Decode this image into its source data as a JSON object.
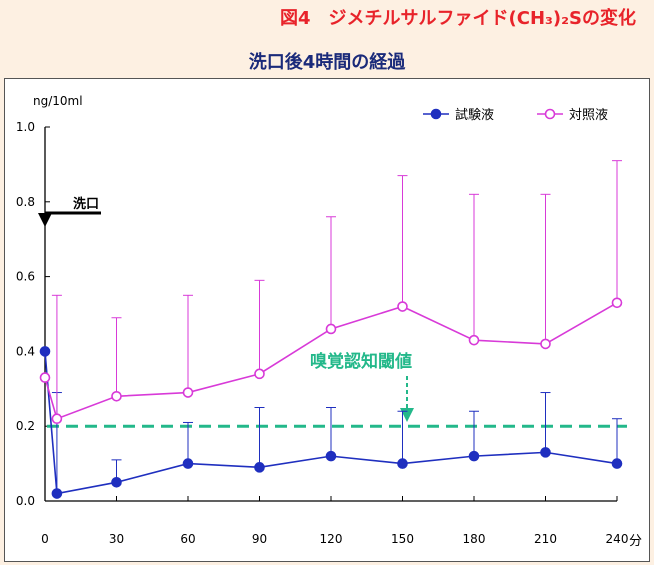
{
  "figure_title": "図4　ジメチルサルファイド(CH₃)₂Sの変化",
  "chart_title": "洗口後4時間の経過",
  "colors": {
    "test": "#1f2fbf",
    "control": "#d83ad8",
    "threshold": "#23b88a",
    "title_red": "#e8232a",
    "title_navy": "#1a2a7a"
  },
  "chart_data": {
    "type": "line",
    "ylabel": "ng/10ml",
    "xunit": "分",
    "ylim": [
      0.0,
      1.0
    ],
    "xlim": [
      0,
      240
    ],
    "yticks": [
      "0.0",
      "0.2",
      "0.4",
      "0.6",
      "0.8",
      "1.0"
    ],
    "xticks": [
      "0",
      "30",
      "60",
      "90",
      "120",
      "150",
      "180",
      "210",
      "240"
    ],
    "series": [
      {
        "name": "試験液",
        "marker": "filled-circle",
        "x": [
          0,
          5,
          30,
          60,
          90,
          120,
          150,
          180,
          210,
          240
        ],
        "y": [
          0.4,
          0.02,
          0.05,
          0.1,
          0.09,
          0.12,
          0.1,
          0.12,
          0.13,
          0.1
        ],
        "error_upper": [
          0.4,
          0.29,
          0.11,
          0.21,
          0.25,
          0.25,
          0.24,
          0.24,
          0.29,
          0.22
        ]
      },
      {
        "name": "対照液",
        "marker": "open-circle",
        "x": [
          0,
          5,
          30,
          60,
          90,
          120,
          150,
          180,
          210,
          240
        ],
        "y": [
          0.33,
          0.22,
          0.28,
          0.29,
          0.34,
          0.46,
          0.52,
          0.43,
          0.42,
          0.53
        ],
        "error_upper": [
          0.33,
          0.55,
          0.49,
          0.55,
          0.59,
          0.76,
          0.87,
          0.82,
          0.82,
          0.91
        ]
      }
    ],
    "threshold": {
      "label": "嗅覚認知閾値",
      "y": 0.2
    },
    "rinse_marker": {
      "label": "洗口",
      "y": 0.77
    },
    "legend_position": "top-right"
  }
}
